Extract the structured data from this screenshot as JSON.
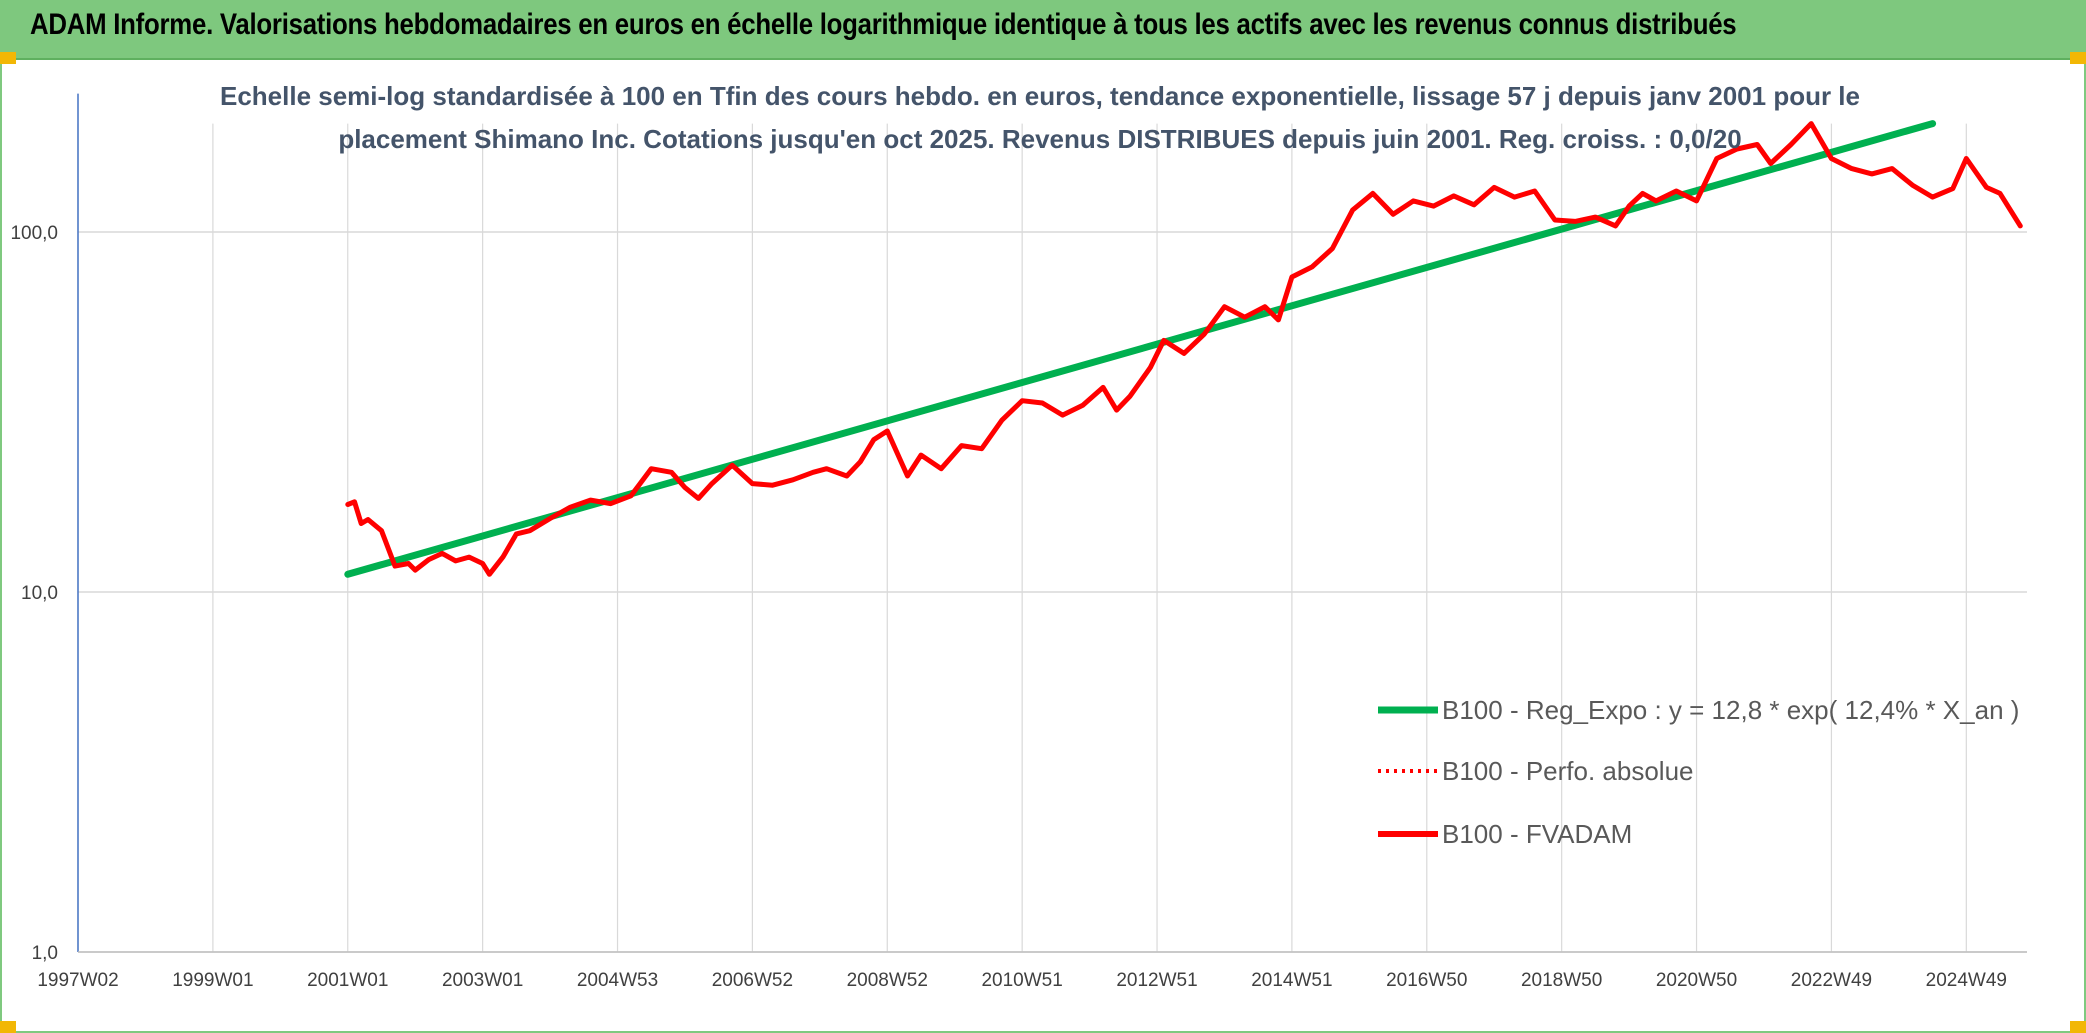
{
  "banner": {
    "title": "ADAM Informe. Valorisations hebdomadaires en euros en échelle logarithmique identique à tous les actifs avec les revenus connus distribués"
  },
  "colors": {
    "banner_bg": "#7ec87e",
    "trend": "#00b050",
    "series": "#ff0000",
    "grid": "#d9d9d9",
    "axis": "#4472c4",
    "subtitle": "#44546a"
  },
  "chart_data": {
    "type": "line",
    "subtitle": [
      "Echelle semi-log standardisée à 100 en Tfin des cours hebdo. en euros, tendance exponentielle, lissage 57 j depuis janv 2001 pour le",
      "placement Shimano Inc. Cotations jusqu'en oct 2025. Revenus DISTRIBUES depuis juin 2001. Reg. croiss. : 0,0/20"
    ],
    "y_scale": "log",
    "ylim": [
      1,
      200
    ],
    "y_ticks": [
      {
        "value": 1,
        "label": "1,0"
      },
      {
        "value": 10,
        "label": "10,0"
      },
      {
        "value": 100,
        "label": "100,0"
      }
    ],
    "xlim": [
      1997.0,
      2025.9
    ],
    "x_ticks": [
      {
        "value": 1997.0,
        "label": "1997W02"
      },
      {
        "value": 1999.0,
        "label": "1999W01"
      },
      {
        "value": 2001.0,
        "label": "2001W01"
      },
      {
        "value": 2003.0,
        "label": "2003W01"
      },
      {
        "value": 2005.0,
        "label": "2004W53"
      },
      {
        "value": 2007.0,
        "label": "2006W52"
      },
      {
        "value": 2009.0,
        "label": "2008W52"
      },
      {
        "value": 2011.0,
        "label": "2010W51"
      },
      {
        "value": 2013.0,
        "label": "2012W51"
      },
      {
        "value": 2015.0,
        "label": "2014W51"
      },
      {
        "value": 2017.0,
        "label": "2016W50"
      },
      {
        "value": 2019.0,
        "label": "2018W50"
      },
      {
        "value": 2021.0,
        "label": "2020W50"
      },
      {
        "value": 2023.0,
        "label": "2022W49"
      },
      {
        "value": 2025.0,
        "label": "2024W49"
      }
    ],
    "legend_position": "bottom-right",
    "series": [
      {
        "name": "B100 - Reg_Expo : y = 12,8 * exp( 12,4% *  X_an )",
        "style": "solid-thick",
        "color": "#00b050",
        "x": [
          2001.0,
          2024.5
        ],
        "y": [
          11.2,
          200
        ]
      },
      {
        "name": "B100 - Perfo. absolue",
        "style": "dotted",
        "color": "#ff0000",
        "x": [],
        "y": []
      },
      {
        "name": "B100 - FVADAM",
        "style": "solid",
        "color": "#ff0000",
        "x": [
          2001.0,
          2001.1,
          2001.2,
          2001.3,
          2001.5,
          2001.7,
          2001.9,
          2002.0,
          2002.2,
          2002.4,
          2002.6,
          2002.8,
          2003.0,
          2003.1,
          2003.3,
          2003.5,
          2003.7,
          2004.0,
          2004.3,
          2004.6,
          2004.9,
          2005.2,
          2005.5,
          2005.8,
          2006.0,
          2006.2,
          2006.4,
          2006.7,
          2007.0,
          2007.3,
          2007.6,
          2007.9,
          2008.1,
          2008.4,
          2008.6,
          2008.8,
          2009.0,
          2009.3,
          2009.5,
          2009.8,
          2010.1,
          2010.4,
          2010.7,
          2011.0,
          2011.3,
          2011.6,
          2011.9,
          2012.2,
          2012.4,
          2012.6,
          2012.9,
          2013.1,
          2013.4,
          2013.7,
          2014.0,
          2014.3,
          2014.6,
          2014.8,
          2015.0,
          2015.3,
          2015.6,
          2015.9,
          2016.2,
          2016.5,
          2016.8,
          2017.1,
          2017.4,
          2017.7,
          2018.0,
          2018.3,
          2018.6,
          2018.9,
          2019.2,
          2019.5,
          2019.8,
          2020.0,
          2020.2,
          2020.4,
          2020.7,
          2021.0,
          2021.3,
          2021.6,
          2021.9,
          2022.1,
          2022.4,
          2022.7,
          2023.0,
          2023.3,
          2023.6,
          2023.9,
          2024.2,
          2024.5,
          2024.8,
          2025.0,
          2025.3,
          2025.5,
          2025.8
        ],
        "y": [
          17.5,
          17.8,
          15.5,
          15.9,
          14.8,
          11.8,
          12.0,
          11.5,
          12.3,
          12.8,
          12.2,
          12.5,
          12.0,
          11.2,
          12.5,
          14.5,
          14.8,
          16.0,
          17.2,
          18.0,
          17.6,
          18.5,
          22.0,
          21.5,
          19.5,
          18.2,
          20.0,
          22.5,
          20.0,
          19.8,
          20.5,
          21.5,
          22.0,
          21.0,
          23.0,
          26.5,
          28.0,
          21.0,
          24.0,
          22.0,
          25.5,
          25.0,
          30.0,
          34.0,
          33.5,
          31.0,
          33.0,
          37.0,
          32.0,
          35.0,
          42.0,
          50.0,
          46.0,
          52.0,
          62.0,
          58.0,
          62.0,
          57.0,
          75.0,
          80.0,
          90.0,
          115.0,
          128.0,
          112.0,
          122.0,
          118.0,
          126.0,
          119.0,
          133.0,
          125.0,
          130.0,
          108.0,
          107.0,
          110.0,
          104.0,
          118.0,
          128.0,
          122.0,
          130.0,
          122.0,
          160.0,
          170.0,
          175.0,
          155.0,
          175.0,
          200.0,
          160.0,
          150.0,
          145.0,
          150.0,
          135.0,
          125.0,
          132.0,
          160.0,
          133.0,
          128.0,
          104.0
        ]
      }
    ]
  }
}
